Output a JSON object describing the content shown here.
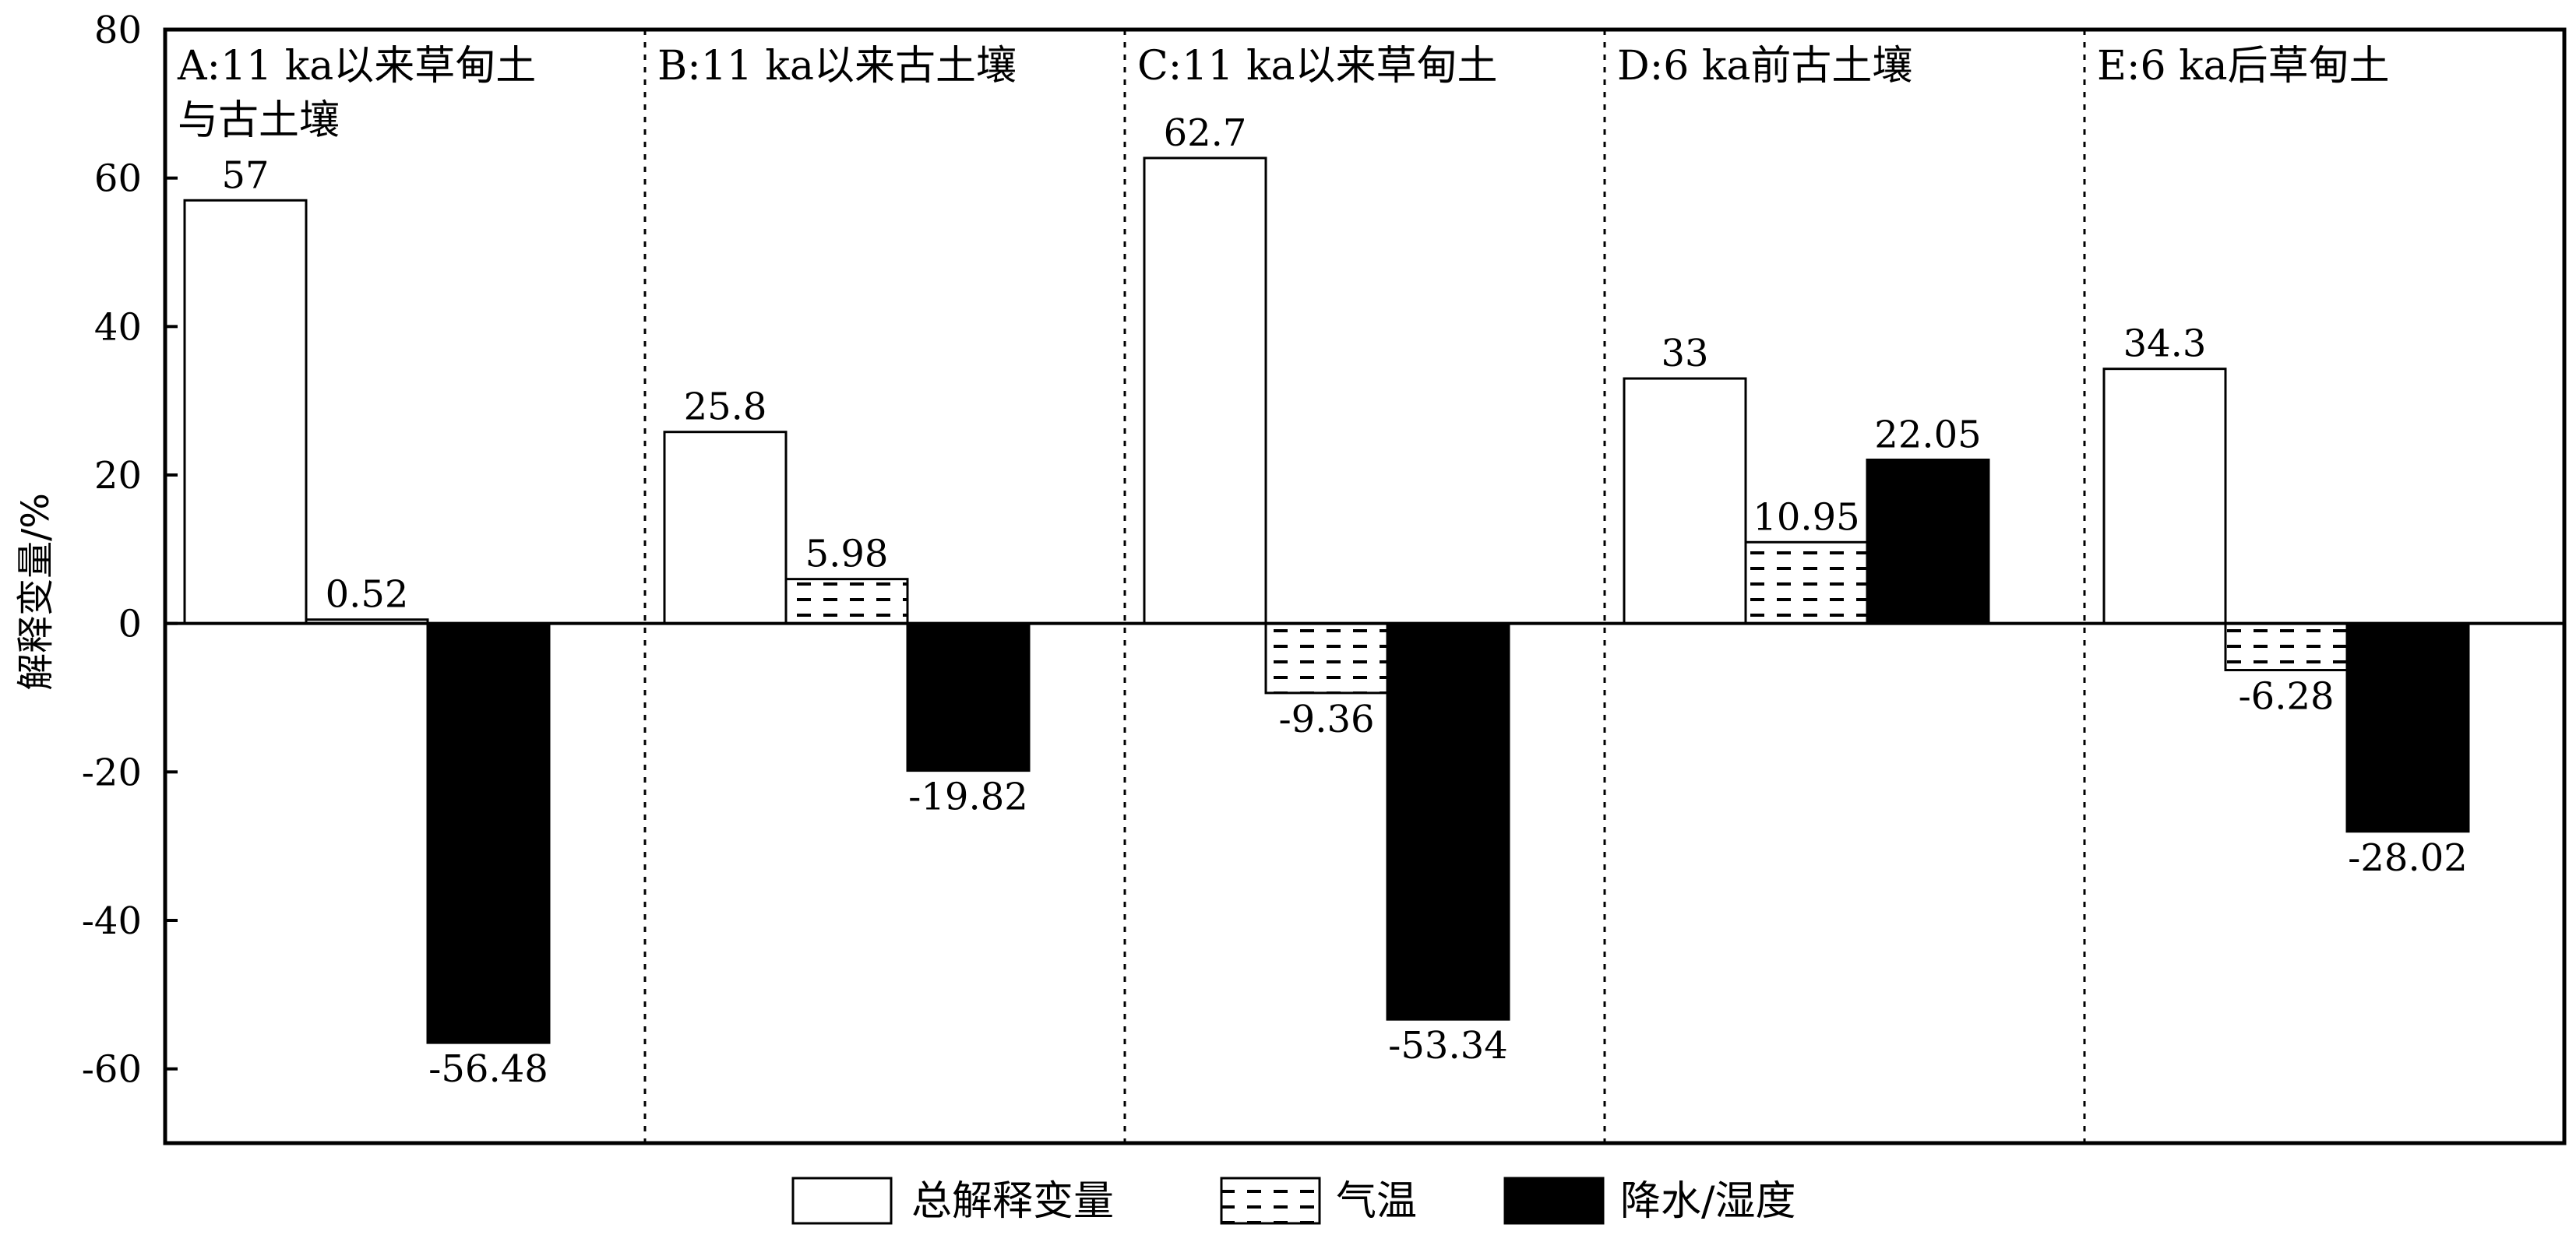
{
  "chart_data": {
    "type": "bar",
    "title": "",
    "xlabel": "",
    "ylabel": "解释变量/%",
    "ylim": [
      -70,
      80
    ],
    "yticks": [
      80,
      60,
      40,
      20,
      0,
      -20,
      -40,
      -60
    ],
    "grid": false,
    "legend_position": "bottom",
    "panels": [
      {
        "label_lines": [
          "A:11 ka以来草甸土",
          "与古土壤"
        ],
        "values": [
          57,
          0.52,
          -56.48
        ],
        "value_labels": [
          "57",
          "0.52",
          "-56.48"
        ]
      },
      {
        "label_lines": [
          "B:11 ka以来古土壤"
        ],
        "values": [
          25.8,
          5.98,
          -19.82
        ],
        "value_labels": [
          "25.8",
          "5.98",
          "-19.82"
        ]
      },
      {
        "label_lines": [
          "C:11 ka以来草甸土"
        ],
        "values": [
          62.7,
          -9.36,
          -53.34
        ],
        "value_labels": [
          "62.7",
          "-9.36",
          "-53.34"
        ]
      },
      {
        "label_lines": [
          "D:6 ka前古土壤"
        ],
        "values": [
          33,
          10.95,
          22.05
        ],
        "value_labels": [
          "33",
          "10.95",
          "22.05"
        ]
      },
      {
        "label_lines": [
          "E:6 ka后草甸土"
        ],
        "values": [
          34.3,
          -6.28,
          -28.02
        ],
        "value_labels": [
          "34.3",
          "-6.28",
          "-28.02"
        ]
      }
    ],
    "series": [
      {
        "name": "总解释变量",
        "fill": "#ffffff",
        "pattern": "none"
      },
      {
        "name": "气温",
        "fill": "#ffffff",
        "pattern": "dashes"
      },
      {
        "name": "降水/湿度",
        "fill": "#000000",
        "pattern": "none"
      }
    ]
  }
}
